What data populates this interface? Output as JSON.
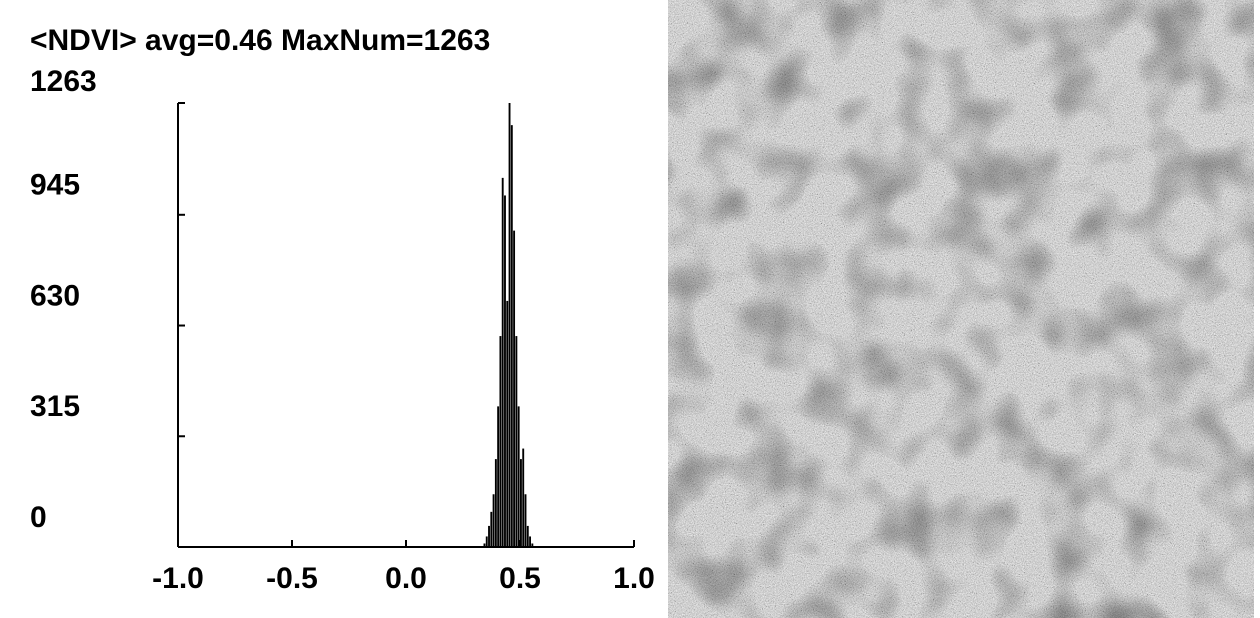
{
  "chart_data": {
    "type": "histogram",
    "title": "<NDVI> avg=0.46 MaxNum=1263",
    "bins": [
      0.34,
      0.35,
      0.36,
      0.37,
      0.38,
      0.39,
      0.4,
      0.41,
      0.42,
      0.43,
      0.44,
      0.45,
      0.46,
      0.47,
      0.48,
      0.49,
      0.5,
      0.51,
      0.52,
      0.53,
      0.54,
      0.55,
      0.56
    ],
    "counts": [
      10,
      30,
      60,
      100,
      150,
      250,
      400,
      600,
      1050,
      1000,
      700,
      1263,
      1200,
      900,
      600,
      400,
      250,
      280,
      150,
      60,
      30,
      10
    ],
    "color": "#000000",
    "xlim": [
      -1,
      1
    ],
    "xticks": [
      {
        "value": -1,
        "label": "-1.0"
      },
      {
        "value": -0.5,
        "label": "-0.5"
      },
      {
        "value": 0,
        "label": "0.0"
      },
      {
        "value": 0.5,
        "label": "0.5"
      },
      {
        "value": 1,
        "label": "1.0"
      }
    ],
    "ylim": [
      0,
      1263
    ],
    "yticks": [
      0,
      315,
      630,
      945,
      1263
    ]
  }
}
